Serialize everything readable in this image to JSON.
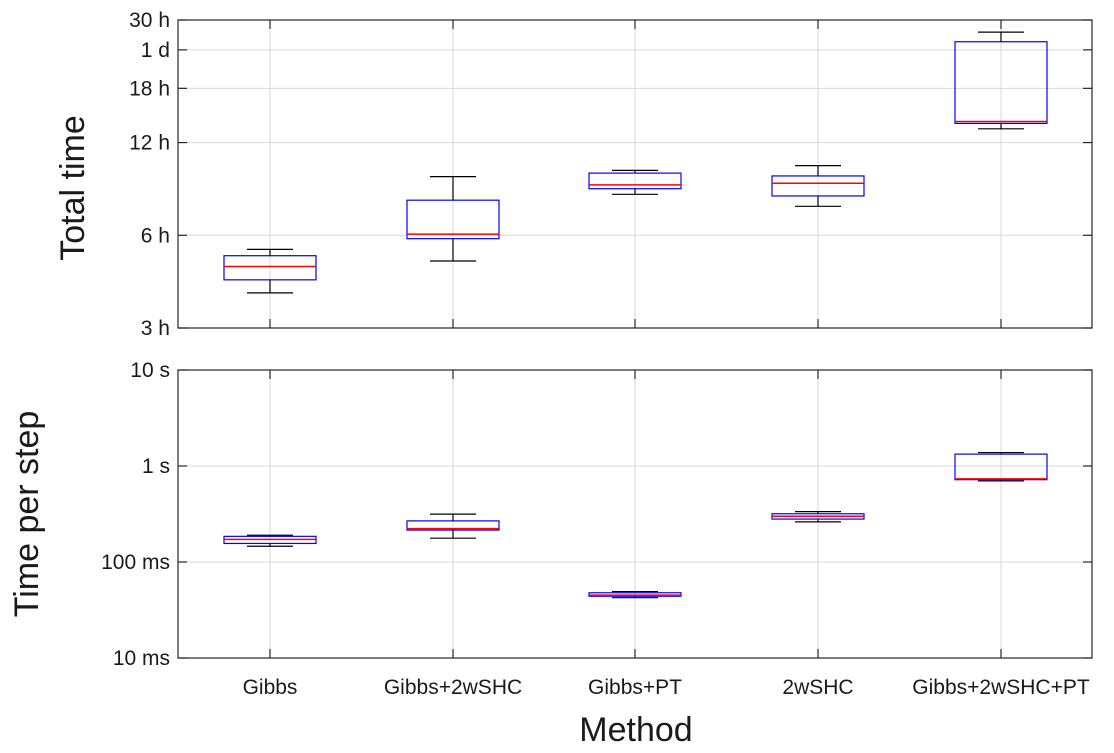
{
  "chart_data": [
    {
      "type": "box",
      "ylabel": "Total time",
      "yscale": "log",
      "yunit": "hours",
      "ylim": [
        3,
        30
      ],
      "yticks": [
        {
          "value": 3,
          "label": "3 h"
        },
        {
          "value": 6,
          "label": "6 h"
        },
        {
          "value": 12,
          "label": "12 h"
        },
        {
          "value": 18,
          "label": "18 h"
        },
        {
          "value": 24,
          "label": "1 d"
        },
        {
          "value": 30,
          "label": "30 h"
        }
      ],
      "grid": true,
      "categories": [
        "Gibbs",
        "Gibbs+2wSHC",
        "Gibbs+PT",
        "2wSHC",
        "Gibbs+2wSHC+PT"
      ],
      "boxes": [
        {
          "whisker_low": 3.9,
          "q1": 4.3,
          "median": 4.75,
          "q3": 5.15,
          "whisker_high": 5.4
        },
        {
          "whisker_low": 4.95,
          "q1": 5.85,
          "median": 6.05,
          "q3": 7.8,
          "whisker_high": 9.3
        },
        {
          "whisker_low": 8.15,
          "q1": 8.5,
          "median": 8.75,
          "q3": 9.55,
          "whisker_high": 9.75
        },
        {
          "whisker_low": 7.45,
          "q1": 8.05,
          "median": 8.85,
          "q3": 9.35,
          "whisker_high": 10.1
        },
        {
          "whisker_low": 13.3,
          "q1": 13.85,
          "median": 14.05,
          "q3": 25.5,
          "whisker_high": 27.4
        }
      ]
    },
    {
      "type": "box",
      "xlabel": "Method",
      "ylabel": "Time per step",
      "yscale": "log",
      "yunit": "seconds",
      "ylim": [
        0.01,
        10
      ],
      "yticks": [
        {
          "value": 0.01,
          "label": "10 ms"
        },
        {
          "value": 0.1,
          "label": "100 ms"
        },
        {
          "value": 1,
          "label": "1 s"
        },
        {
          "value": 10,
          "label": "10 s"
        }
      ],
      "grid": true,
      "categories": [
        "Gibbs",
        "Gibbs+2wSHC",
        "Gibbs+PT",
        "2wSHC",
        "Gibbs+2wSHC+PT"
      ],
      "boxes": [
        {
          "whisker_low": 0.146,
          "q1": 0.156,
          "median": 0.172,
          "q3": 0.185,
          "whisker_high": 0.19
        },
        {
          "whisker_low": 0.177,
          "q1": 0.215,
          "median": 0.223,
          "q3": 0.268,
          "whisker_high": 0.315
        },
        {
          "whisker_low": 0.0425,
          "q1": 0.044,
          "median": 0.0452,
          "q3": 0.0478,
          "whisker_high": 0.0492
        },
        {
          "whisker_low": 0.262,
          "q1": 0.28,
          "median": 0.3,
          "q3": 0.318,
          "whisker_high": 0.335
        },
        {
          "whisker_low": 0.7,
          "q1": 0.72,
          "median": 0.735,
          "q3": 1.33,
          "whisker_high": 1.38
        }
      ]
    }
  ],
  "colors": {
    "box": "#0000ff",
    "median": "#ff0000",
    "whisker": "#000000",
    "grid": "#d9d9d9",
    "frame": "#262626"
  }
}
